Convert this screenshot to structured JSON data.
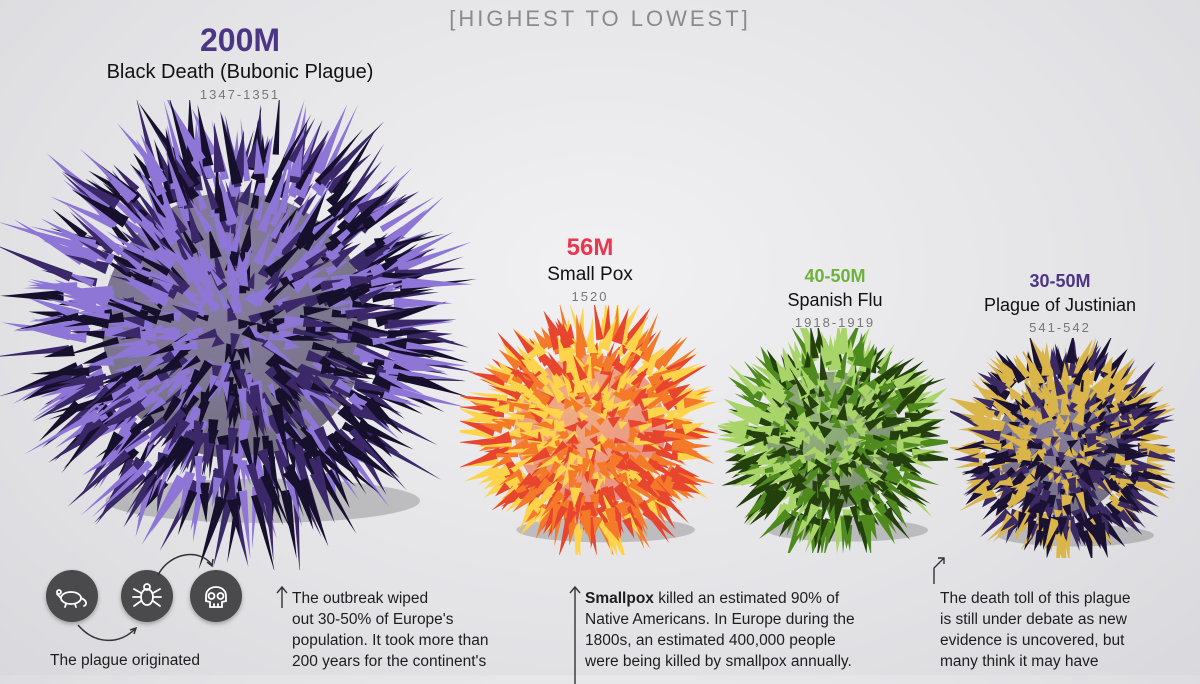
{
  "subtitle": "[HIGHEST TO LOWEST]",
  "pandemics": [
    {
      "value": "200M",
      "name": "Black Death (Bubonic Plague)",
      "years": "1347-1351",
      "color": "#4d3585"
    },
    {
      "value": "56M",
      "name": "Small Pox",
      "years": "1520",
      "color": "#e8384f"
    },
    {
      "value": "40-50M",
      "name": "Spanish Flu",
      "years": "1918-1919",
      "color": "#6bb33a"
    },
    {
      "value": "30-50M",
      "name": "Plague of Justinian",
      "years": "541-542",
      "color": "#4d3585"
    }
  ],
  "icons": [
    "rat-icon",
    "flea-icon",
    "skull-icon"
  ],
  "descriptions": {
    "plague_origin": "The plague originated",
    "black_death": [
      "The outbreak wiped",
      "out 30-50% of Europe's",
      "population. It took more than",
      "200 years for the continent's"
    ],
    "smallpox_bold": "Smallpox",
    "smallpox": [
      " killed an estimated 90% of",
      "Native Americans. In Europe during the",
      "1800s, an estimated 400,000 people",
      "were being killed by smallpox annually."
    ],
    "justinian": [
      "The death toll of this plague",
      "is still under debate as new",
      "evidence is uncovered, but",
      "many think it may have"
    ]
  }
}
